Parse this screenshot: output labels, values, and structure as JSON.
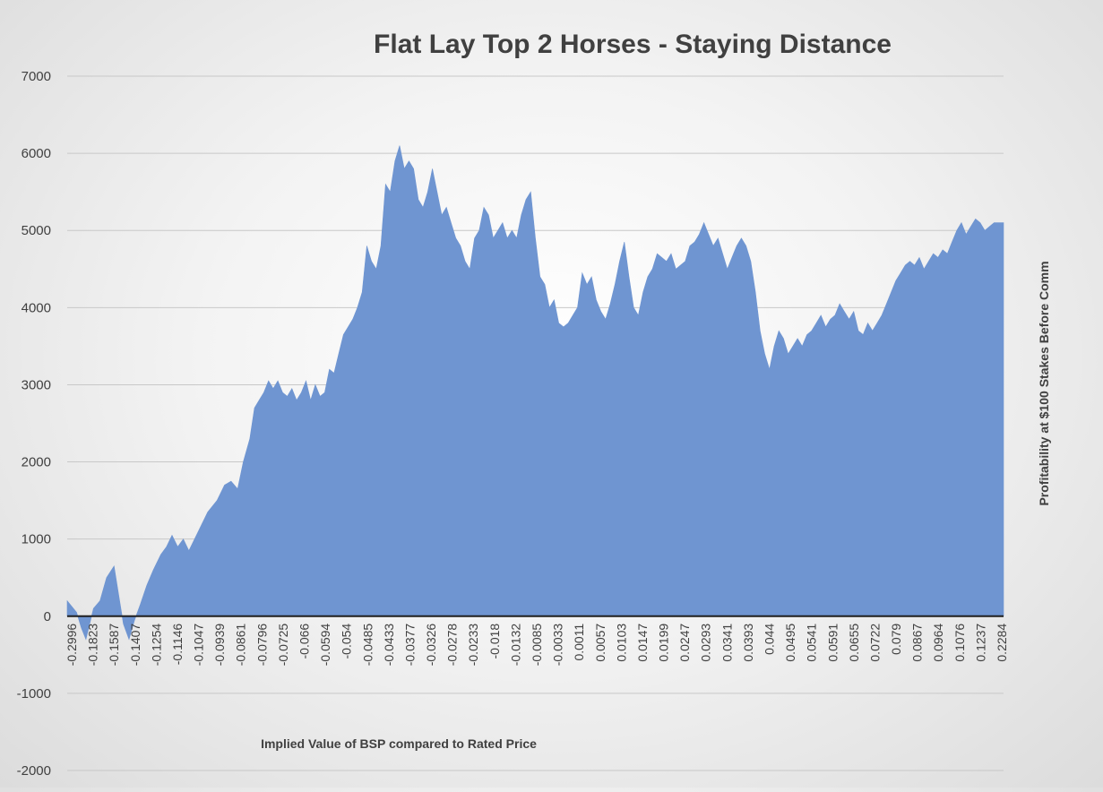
{
  "chart_data": {
    "type": "area",
    "title": "Flat Lay Top 2 Horses - Staying Distance",
    "xlabel": "Implied Value of BSP compared to Rated Price",
    "ylabel": "Profitability at $100 Stakes Before Comm",
    "ylim": [
      -2000,
      7000
    ],
    "yticks": [
      7000,
      6000,
      5000,
      4000,
      3000,
      2000,
      1000,
      0,
      -1000,
      -2000
    ],
    "grid": true,
    "legend": "none",
    "colors": {
      "fill": "#6f95d1",
      "grid": "#c8c8c8",
      "axis": "#1f1f1f"
    },
    "categories": [
      "-0.2996",
      "-0.1823",
      "-0.1587",
      "-0.1407",
      "-0.1254",
      "-0.1146",
      "-0.1047",
      "-0.0939",
      "-0.0861",
      "-0.0796",
      "-0.0725",
      "-0.066",
      "-0.0594",
      "-0.054",
      "-0.0485",
      "-0.0433",
      "-0.0377",
      "-0.0326",
      "-0.0278",
      "-0.0233",
      "-0.018",
      "-0.0132",
      "-0.0085",
      "-0.0033",
      "0.0011",
      "0.0057",
      "0.0103",
      "0.0147",
      "0.0199",
      "0.0247",
      "0.0293",
      "0.0341",
      "0.0393",
      "0.044",
      "0.0495",
      "0.0541",
      "0.0591",
      "0.0655",
      "0.0722",
      "0.079",
      "0.0867",
      "0.0964",
      "0.1076",
      "0.1237",
      "0.2284"
    ],
    "series": [
      {
        "values": [
          [
            0,
            200
          ],
          [
            0.01,
            50
          ],
          [
            0.015,
            -150
          ],
          [
            0.02,
            -300
          ],
          [
            0.028,
            100
          ],
          [
            0.035,
            200
          ],
          [
            0.042,
            500
          ],
          [
            0.05,
            650
          ],
          [
            0.056,
            200
          ],
          [
            0.06,
            -100
          ],
          [
            0.066,
            -300
          ],
          [
            0.072,
            -50
          ],
          [
            0.078,
            150
          ],
          [
            0.085,
            400
          ],
          [
            0.092,
            600
          ],
          [
            0.1,
            800
          ],
          [
            0.106,
            900
          ],
          [
            0.112,
            1050
          ],
          [
            0.118,
            900
          ],
          [
            0.124,
            1000
          ],
          [
            0.13,
            850
          ],
          [
            0.14,
            1100
          ],
          [
            0.15,
            1350
          ],
          [
            0.16,
            1500
          ],
          [
            0.168,
            1700
          ],
          [
            0.175,
            1750
          ],
          [
            0.182,
            1650
          ],
          [
            0.188,
            2000
          ],
          [
            0.195,
            2300
          ],
          [
            0.2,
            2700
          ],
          [
            0.205,
            2800
          ],
          [
            0.21,
            2900
          ],
          [
            0.215,
            3050
          ],
          [
            0.22,
            2950
          ],
          [
            0.225,
            3050
          ],
          [
            0.23,
            2900
          ],
          [
            0.235,
            2850
          ],
          [
            0.24,
            2950
          ],
          [
            0.245,
            2800
          ],
          [
            0.25,
            2900
          ],
          [
            0.255,
            3050
          ],
          [
            0.26,
            2800
          ],
          [
            0.265,
            3000
          ],
          [
            0.27,
            2850
          ],
          [
            0.275,
            2900
          ],
          [
            0.28,
            3200
          ],
          [
            0.285,
            3150
          ],
          [
            0.29,
            3400
          ],
          [
            0.295,
            3650
          ],
          [
            0.3,
            3750
          ],
          [
            0.305,
            3850
          ],
          [
            0.31,
            4000
          ],
          [
            0.315,
            4200
          ],
          [
            0.32,
            4800
          ],
          [
            0.325,
            4600
          ],
          [
            0.33,
            4500
          ],
          [
            0.335,
            4800
          ],
          [
            0.34,
            5600
          ],
          [
            0.345,
            5500
          ],
          [
            0.35,
            5900
          ],
          [
            0.355,
            6100
          ],
          [
            0.36,
            5800
          ],
          [
            0.365,
            5900
          ],
          [
            0.37,
            5800
          ],
          [
            0.375,
            5400
          ],
          [
            0.38,
            5300
          ],
          [
            0.385,
            5500
          ],
          [
            0.39,
            5800
          ],
          [
            0.395,
            5500
          ],
          [
            0.4,
            5200
          ],
          [
            0.405,
            5300
          ],
          [
            0.41,
            5100
          ],
          [
            0.415,
            4900
          ],
          [
            0.42,
            4800
          ],
          [
            0.425,
            4600
          ],
          [
            0.43,
            4500
          ],
          [
            0.435,
            4900
          ],
          [
            0.44,
            5000
          ],
          [
            0.445,
            5300
          ],
          [
            0.45,
            5200
          ],
          [
            0.455,
            4900
          ],
          [
            0.46,
            5000
          ],
          [
            0.465,
            5100
          ],
          [
            0.47,
            4900
          ],
          [
            0.475,
            5000
          ],
          [
            0.48,
            4900
          ],
          [
            0.485,
            5200
          ],
          [
            0.49,
            5400
          ],
          [
            0.495,
            5500
          ],
          [
            0.5,
            4900
          ],
          [
            0.505,
            4400
          ],
          [
            0.51,
            4300
          ],
          [
            0.515,
            4000
          ],
          [
            0.52,
            4100
          ],
          [
            0.525,
            3800
          ],
          [
            0.53,
            3750
          ],
          [
            0.535,
            3800
          ],
          [
            0.54,
            3900
          ],
          [
            0.545,
            4000
          ],
          [
            0.55,
            4450
          ],
          [
            0.555,
            4300
          ],
          [
            0.56,
            4400
          ],
          [
            0.565,
            4100
          ],
          [
            0.57,
            3950
          ],
          [
            0.575,
            3850
          ],
          [
            0.58,
            4050
          ],
          [
            0.585,
            4300
          ],
          [
            0.59,
            4600
          ],
          [
            0.595,
            4850
          ],
          [
            0.6,
            4400
          ],
          [
            0.605,
            4000
          ],
          [
            0.61,
            3900
          ],
          [
            0.615,
            4200
          ],
          [
            0.62,
            4400
          ],
          [
            0.625,
            4500
          ],
          [
            0.63,
            4700
          ],
          [
            0.635,
            4650
          ],
          [
            0.64,
            4600
          ],
          [
            0.645,
            4700
          ],
          [
            0.65,
            4500
          ],
          [
            0.655,
            4550
          ],
          [
            0.66,
            4600
          ],
          [
            0.665,
            4800
          ],
          [
            0.67,
            4850
          ],
          [
            0.675,
            4950
          ],
          [
            0.68,
            5100
          ],
          [
            0.685,
            4950
          ],
          [
            0.69,
            4800
          ],
          [
            0.695,
            4900
          ],
          [
            0.7,
            4700
          ],
          [
            0.705,
            4500
          ],
          [
            0.71,
            4650
          ],
          [
            0.715,
            4800
          ],
          [
            0.72,
            4900
          ],
          [
            0.725,
            4800
          ],
          [
            0.73,
            4600
          ],
          [
            0.735,
            4200
          ],
          [
            0.74,
            3700
          ],
          [
            0.745,
            3400
          ],
          [
            0.75,
            3200
          ],
          [
            0.755,
            3500
          ],
          [
            0.76,
            3700
          ],
          [
            0.765,
            3600
          ],
          [
            0.77,
            3400
          ],
          [
            0.775,
            3500
          ],
          [
            0.78,
            3600
          ],
          [
            0.785,
            3500
          ],
          [
            0.79,
            3650
          ],
          [
            0.795,
            3700
          ],
          [
            0.8,
            3800
          ],
          [
            0.805,
            3900
          ],
          [
            0.81,
            3750
          ],
          [
            0.815,
            3850
          ],
          [
            0.82,
            3900
          ],
          [
            0.825,
            4050
          ],
          [
            0.83,
            3950
          ],
          [
            0.835,
            3850
          ],
          [
            0.84,
            3950
          ],
          [
            0.845,
            3700
          ],
          [
            0.85,
            3650
          ],
          [
            0.855,
            3800
          ],
          [
            0.86,
            3700
          ],
          [
            0.865,
            3800
          ],
          [
            0.87,
            3900
          ],
          [
            0.875,
            4050
          ],
          [
            0.88,
            4200
          ],
          [
            0.885,
            4350
          ],
          [
            0.89,
            4450
          ],
          [
            0.895,
            4550
          ],
          [
            0.9,
            4600
          ],
          [
            0.905,
            4550
          ],
          [
            0.91,
            4650
          ],
          [
            0.915,
            4500
          ],
          [
            0.92,
            4600
          ],
          [
            0.925,
            4700
          ],
          [
            0.93,
            4650
          ],
          [
            0.935,
            4750
          ],
          [
            0.94,
            4700
          ],
          [
            0.945,
            4850
          ],
          [
            0.95,
            5000
          ],
          [
            0.955,
            5100
          ],
          [
            0.96,
            4950
          ],
          [
            0.965,
            5050
          ],
          [
            0.97,
            5150
          ],
          [
            0.975,
            5100
          ],
          [
            0.98,
            5000
          ],
          [
            0.985,
            5050
          ],
          [
            0.99,
            5100
          ],
          [
            1.0,
            5100
          ]
        ]
      }
    ]
  }
}
